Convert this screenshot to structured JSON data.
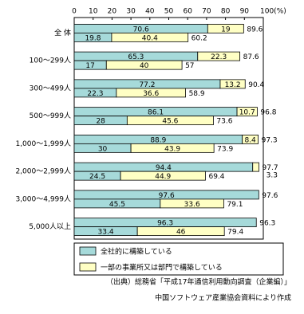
{
  "chart_data": {
    "type": "stacked-bar-pairs",
    "categories": [
      "全 体",
      "100～299人",
      "300～499人",
      "500～999人",
      "1,000～1,999人",
      "2,000～2,999人",
      "3,000～4,999人",
      "5,000人以上"
    ],
    "legend": [
      {
        "name": "全社的に構築している",
        "color": "#a6dada"
      },
      {
        "name": "一部の事業所又は部門で構築している",
        "color": "#ffffc4"
      }
    ],
    "bars": [
      {
        "segments": [
          {
            "values": [
              70.6,
              65.3,
              77.2,
              86.1,
              88.9,
              94.4,
              97.6,
              96.3
            ]
          },
          {
            "values": [
              19.0,
              22.3,
              13.2,
              10.7,
              8.4,
              3.3,
              null,
              null
            ]
          }
        ],
        "totals": [
          89.6,
          87.6,
          90.4,
          96.8,
          97.3,
          97.7,
          97.6,
          96.3
        ]
      },
      {
        "segments": [
          {
            "values": [
              19.8,
              17.0,
              22.3,
              28.0,
              30.0,
              24.5,
              45.5,
              33.4
            ]
          },
          {
            "values": [
              40.4,
              40.0,
              36.6,
              45.6,
              43.9,
              44.9,
              33.6,
              46.0
            ]
          }
        ],
        "totals": [
          60.2,
          57.0,
          58.9,
          73.6,
          73.9,
          69.4,
          79.1,
          79.4
        ]
      }
    ],
    "xlim": [
      0,
      100
    ],
    "xticks": [
      0,
      10,
      20,
      30,
      40,
      50,
      60,
      70,
      80,
      90,
      {
        "value": 100,
        "label": "100(%)"
      }
    ],
    "source": [
      "（出典）総務省「平成17年通信利用動向調査（企業編）」",
      "中国ソフトウェア産業協会資料により作成"
    ]
  }
}
